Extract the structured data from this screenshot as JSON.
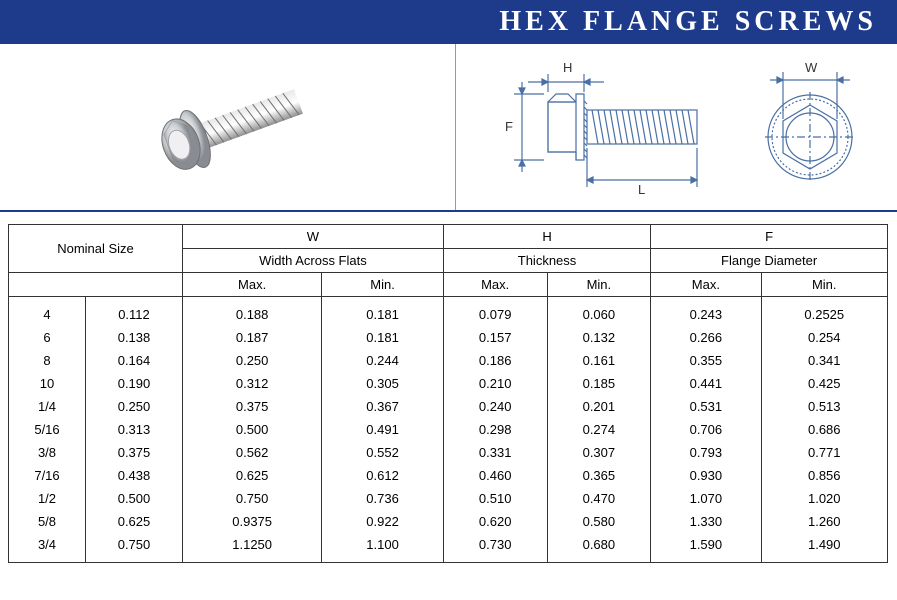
{
  "title": "HEX FLANGE SCREWS",
  "diagram_labels": {
    "H": "H",
    "F": "F",
    "L": "L",
    "W": "W"
  },
  "columns": {
    "nominal": "Nominal Size",
    "W_header": "W",
    "W_sub": "Width Across Flats",
    "H_header": "H",
    "H_sub": "Thickness",
    "F_header": "F",
    "F_sub": "Flange Diameter",
    "max": "Max.",
    "min": "Min."
  },
  "rows": [
    {
      "n": "4",
      "d": "0.112",
      "wmax": "0.188",
      "wmin": "0.181",
      "hmax": "0.079",
      "hmin": "0.060",
      "fmax": "0.243",
      "fmin": "0.2525"
    },
    {
      "n": "6",
      "d": "0.138",
      "wmax": "0.187",
      "wmin": "0.181",
      "hmax": "0.157",
      "hmin": "0.132",
      "fmax": "0.266",
      "fmin": "0.254"
    },
    {
      "n": "8",
      "d": "0.164",
      "wmax": "0.250",
      "wmin": "0.244",
      "hmax": "0.186",
      "hmin": "0.161",
      "fmax": "0.355",
      "fmin": "0.341"
    },
    {
      "n": "10",
      "d": "0.190",
      "wmax": "0.312",
      "wmin": "0.305",
      "hmax": "0.210",
      "hmin": "0.185",
      "fmax": "0.441",
      "fmin": "0.425"
    },
    {
      "n": "1/4",
      "d": "0.250",
      "wmax": "0.375",
      "wmin": "0.367",
      "hmax": "0.240",
      "hmin": "0.201",
      "fmax": "0.531",
      "fmin": "0.513"
    },
    {
      "n": "5/16",
      "d": "0.313",
      "wmax": "0.500",
      "wmin": "0.491",
      "hmax": "0.298",
      "hmin": "0.274",
      "fmax": "0.706",
      "fmin": "0.686"
    },
    {
      "n": "3/8",
      "d": "0.375",
      "wmax": "0.562",
      "wmin": "0.552",
      "hmax": "0.331",
      "hmin": "0.307",
      "fmax": "0.793",
      "fmin": "0.771"
    },
    {
      "n": "7/16",
      "d": "0.438",
      "wmax": "0.625",
      "wmin": "0.612",
      "hmax": "0.460",
      "hmin": "0.365",
      "fmax": "0.930",
      "fmin": "0.856"
    },
    {
      "n": "1/2",
      "d": "0.500",
      "wmax": "0.750",
      "wmin": "0.736",
      "hmax": "0.510",
      "hmin": "0.470",
      "fmax": "1.070",
      "fmin": "1.020"
    },
    {
      "n": "5/8",
      "d": "0.625",
      "wmax": "0.9375",
      "wmin": "0.922",
      "hmax": "0.620",
      "hmin": "0.580",
      "fmax": "1.330",
      "fmin": "1.260"
    },
    {
      "n": "3/4",
      "d": "0.750",
      "wmax": "1.1250",
      "wmin": "1.100",
      "hmax": "0.730",
      "hmin": "0.680",
      "fmax": "1.590",
      "fmin": "1.490"
    }
  ],
  "style": {
    "title_bg": "#1e3a8a",
    "title_color": "#ffffff",
    "border_color": "#333333",
    "diagram_color": "#4a6fa5"
  }
}
